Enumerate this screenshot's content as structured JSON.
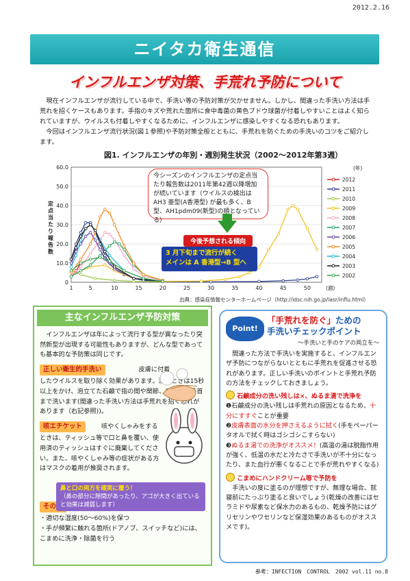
{
  "date": "2012.2.16",
  "banner": "ニイタカ衛生通信",
  "subtitle": "インフルエンザ対策、手荒れ予防について",
  "intro": [
    "現在インフルエンザが流行している中で、手洗い等の予防対策が欠かせません。しかし、間違った手洗い方法は手荒れを招くケースもあります。手指のキズや荒れた箇所に食中毒菌の黄色ブドウ球菌が付着しやすいことはよく知られていますが、ウイルスも付着しやすくなるために、インフルエンザに感染しやすくなる恐れもあります。",
    "今回はインフルエンザ流行状況(図１参照)や予防対策全般とともに、手荒れを防ぐための手洗いのコツをご紹介します。"
  ],
  "chart_title": "図1. インフルエンザの年別・週別発生状況（2002〜2012年第3週）",
  "chart_source": "出典：感染症情報センターホームページ（http://idsc.nih.go.jp/iasr/influ.html）",
  "bubble": "今シーズンのインフルエンザの定点当たり報告数は2011年第42週以降増加が続いています（ウイルスの検出は AH3 亜型(A香港型) が最も多く、B 型、AH1pdm09(新型)の順となっている）",
  "forecast_label": "今後予想される傾向",
  "forecast_line1": "3 月下旬まで流行が続く",
  "forecast_line2": "メインは A 香港型→B 型へ",
  "chart_data": {
    "type": "line",
    "ylabel": "定点当たり報告数",
    "xlabel": "(週)",
    "legend_title": "(年)",
    "ylim": [
      0,
      60
    ],
    "yticks": [
      "0",
      "10.0",
      "20.0",
      "30.0",
      "40.0",
      "50.0",
      "60.0"
    ],
    "xticks": [
      "1",
      "5",
      "10",
      "15",
      "20",
      "25",
      "30",
      "35",
      "40",
      "45",
      "50"
    ],
    "series": [
      {
        "name": "2012",
        "color": "#e02020",
        "values": [
          [
            1,
            3
          ],
          [
            2,
            6
          ],
          [
            3,
            10
          ]
        ]
      },
      {
        "name": "2011",
        "color": "#2f3f8f",
        "values": [
          [
            1,
            12
          ],
          [
            2,
            20
          ],
          [
            3,
            26
          ],
          [
            4,
            31
          ],
          [
            5,
            31
          ],
          [
            6,
            26
          ],
          [
            7,
            20
          ],
          [
            8,
            14
          ],
          [
            9,
            10
          ],
          [
            10,
            7
          ],
          [
            12,
            4
          ],
          [
            14,
            2
          ],
          [
            16,
            1
          ],
          [
            20,
            0.5
          ],
          [
            30,
            0.2
          ],
          [
            40,
            0.4
          ],
          [
            45,
            0.8
          ],
          [
            48,
            1.2
          ],
          [
            50,
            1.8
          ],
          [
            52,
            3
          ]
        ]
      },
      {
        "name": "2010",
        "color": "#9ec64a",
        "values": [
          [
            1,
            6
          ],
          [
            3,
            4
          ],
          [
            6,
            2
          ],
          [
            10,
            1
          ],
          [
            14,
            0.5
          ],
          [
            20,
            0.3
          ]
        ]
      },
      {
        "name": "2009",
        "color": "#f2c022",
        "values": [
          [
            1,
            3
          ],
          [
            3,
            6
          ],
          [
            5,
            8
          ],
          [
            8,
            9
          ],
          [
            10,
            6
          ],
          [
            14,
            2
          ],
          [
            20,
            0.5
          ],
          [
            28,
            0.6
          ],
          [
            33,
            1.5
          ],
          [
            36,
            3
          ],
          [
            38,
            5
          ],
          [
            40,
            8
          ],
          [
            42,
            17
          ],
          [
            44,
            25
          ],
          [
            46,
            38
          ],
          [
            47,
            40
          ],
          [
            48,
            38
          ],
          [
            50,
            28
          ],
          [
            52,
            17
          ]
        ]
      },
      {
        "name": "2008",
        "color": "#f4a7c0",
        "values": [
          [
            1,
            3
          ],
          [
            3,
            8
          ],
          [
            5,
            15
          ],
          [
            7,
            22
          ],
          [
            8,
            26
          ],
          [
            9,
            25
          ],
          [
            10,
            22
          ],
          [
            12,
            14
          ],
          [
            14,
            7
          ],
          [
            16,
            3
          ],
          [
            20,
            1
          ]
        ]
      },
      {
        "name": "2007",
        "color": "#29a36a",
        "values": [
          [
            1,
            3
          ],
          [
            3,
            6
          ],
          [
            5,
            9
          ],
          [
            7,
            14
          ],
          [
            9,
            19
          ],
          [
            10,
            21
          ],
          [
            11,
            20
          ],
          [
            12,
            17
          ],
          [
            14,
            9
          ],
          [
            16,
            4
          ],
          [
            20,
            1
          ]
        ]
      },
      {
        "name": "2006",
        "color": "#6a3fa0",
        "values": [
          [
            1,
            10
          ],
          [
            2,
            16
          ],
          [
            3,
            20
          ],
          [
            4,
            24
          ],
          [
            5,
            26
          ],
          [
            6,
            22
          ],
          [
            7,
            17
          ],
          [
            8,
            12
          ],
          [
            10,
            7
          ],
          [
            14,
            2
          ],
          [
            20,
            0.5
          ]
        ]
      },
      {
        "name": "2005",
        "color": "#f08a20",
        "values": [
          [
            1,
            5
          ],
          [
            3,
            12
          ],
          [
            5,
            20
          ],
          [
            6,
            26
          ],
          [
            7,
            34
          ],
          [
            8,
            38
          ],
          [
            9,
            36
          ],
          [
            10,
            30
          ],
          [
            12,
            19
          ],
          [
            14,
            10
          ],
          [
            16,
            4
          ],
          [
            20,
            1
          ]
        ]
      },
      {
        "name": "2004",
        "color": "#2ab7d6",
        "values": [
          [
            1,
            8
          ],
          [
            2,
            14
          ],
          [
            3,
            22
          ],
          [
            4,
            28
          ],
          [
            5,
            30
          ],
          [
            6,
            27
          ],
          [
            7,
            22
          ],
          [
            9,
            14
          ],
          [
            12,
            6
          ],
          [
            16,
            2
          ],
          [
            20,
            0.5
          ]
        ]
      },
      {
        "name": "2003",
        "color": "#1a1a1a",
        "values": [
          [
            1,
            12
          ],
          [
            2,
            18
          ],
          [
            3,
            24
          ],
          [
            4,
            28
          ],
          [
            5,
            30
          ],
          [
            6,
            27
          ],
          [
            8,
            16
          ],
          [
            10,
            8
          ],
          [
            14,
            2
          ],
          [
            20,
            0.5
          ]
        ]
      },
      {
        "name": "2002",
        "color": "#3aa34a",
        "values": [
          [
            1,
            6
          ],
          [
            3,
            10
          ],
          [
            5,
            12
          ],
          [
            7,
            13
          ],
          [
            9,
            11
          ],
          [
            12,
            6
          ],
          [
            16,
            2
          ],
          [
            20,
            0.5
          ]
        ]
      }
    ]
  },
  "left": {
    "header": "主なインフルエンザ予防対策",
    "intro": "インフルエンザは年によって流行する型が異なったり突然新型が出現する可能性もありますが、どんな型であっても基本的な予防策は同じです。",
    "handwash_tag": "正しい衛生的手洗い",
    "handwash_text1": "皮膚に付着",
    "handwash_text2": "したウイルスを取り除く効果があります。洗うときは15秒以上をかけ、泡立てた石鹸で指の間や関節、爪の間、手首まで洗います(間違った手洗い方法は手荒れを招く恐れがあります（右記参照))。",
    "cough_tag": "咳エチケット",
    "cough_text1": "咳やくしゃみをする",
    "cough_text2": "ときは、ティッシュ等で口と鼻を覆い、使用済のティッシュはすぐに廃棄してください。また、咳やくしゃみ等の症状がある方はマスクの着用が推奨されます。",
    "callout_title": "鼻と口の両方を確実に覆う！",
    "callout_text": "（鼻の部分に隙間があったり、アゴが大きく出ていると効果は減弱します）",
    "other_tag": "その他",
    "other_items": [
      "・適切な湿度(50〜60%)を保つ",
      "・手が頻繁に触れる箇所(ドアノブ、スイッチなど)には、こまめに洗浄・除菌を行う"
    ]
  },
  "right": {
    "badge": "Point!",
    "title_red": "「手荒れを防ぐ」",
    "title_rest": "ための",
    "title_line2": "手洗いチェックポイント",
    "subtitle": "〜手洗いと手のケアの両立を〜",
    "intro": "間違った方法で手洗いを実施すると、インフルエンザ予防につながらないとともに手荒れを促進させる恐れがあります。正しい手洗いのポイントと手荒れ予防の方法をチェックしておきましょう。",
    "check1_head": "石鹸成分の洗い残しは×、ぬるま湯で洗浄を",
    "check1_a": "❶石鹸成分の洗い残しは手荒れの原因となるため、",
    "check1_b": "十分にすすぐ",
    "check1_c": "ことが重要",
    "check2_a": "❷",
    "check2_b": "皮膚表面の水分を押さえるように拭く",
    "check2_c": "(手をペーパータオルで拭く時はゴシゴシこすらない)",
    "check3_a": "❸",
    "check3_b": "ぬるま湯での洗浄がオススメ！",
    "check3_c": "(高温の湯は脱脂作用が強く、低温の水だと冷たさで手洗いが不十分になったり、また血行が悪くなることで手が荒れやすくなる)",
    "check4_head": "こまめにハンドクリーム等で予防を",
    "check4_text": "手洗いの度に塗るのが理想ですが、無理な場合、就寝前にたっぷり塗ると良いでしょう(乾燥の改善にはセラミドや尿素など保水力のあるもの、乾燥予防にはグリセリンやワセリンなど保湿効果のあるものがオススメです)。"
  },
  "reference": "参考：INFECTION　CONTROL　2002 vol.11 no.8"
}
